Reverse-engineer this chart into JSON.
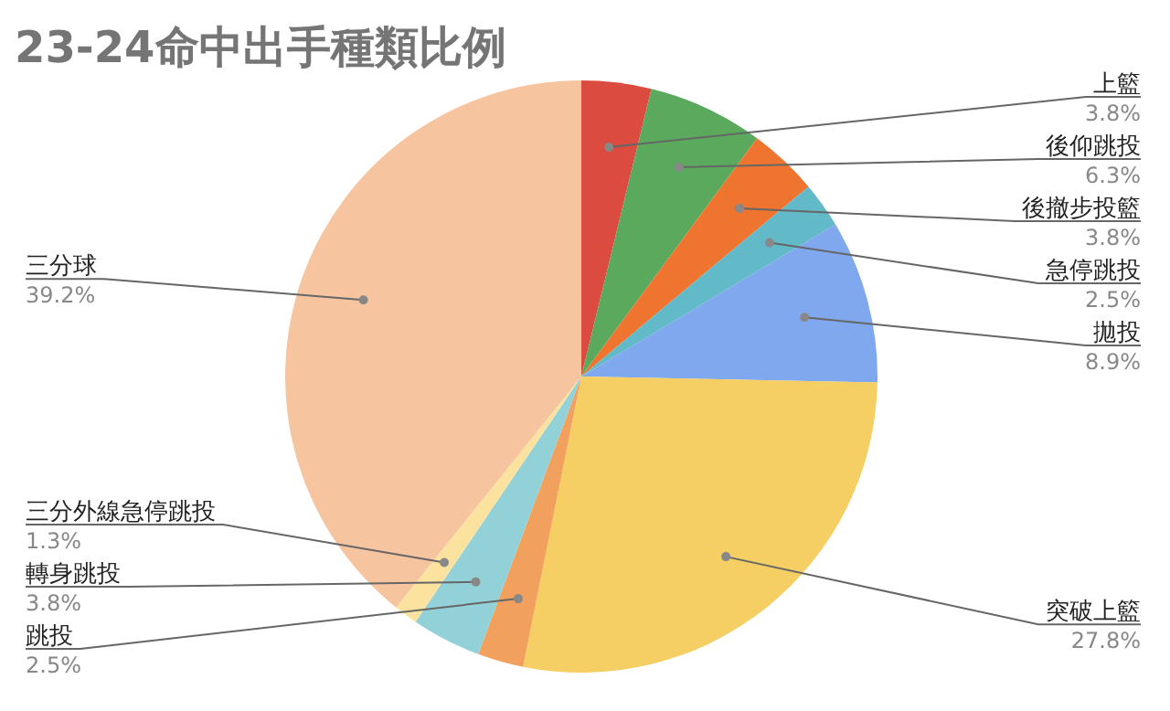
{
  "chart_data": {
    "type": "pie",
    "title": "23-24命中出手種類比例",
    "categories": [
      "上籃",
      "後仰跳投",
      "後撤步投籃",
      "急停跳投",
      "拋投",
      "突破上籃",
      "跳投",
      "轉身跳投",
      "三分外線急停跳投",
      "三分球"
    ],
    "values": [
      3.8,
      6.3,
      3.8,
      2.5,
      8.9,
      27.8,
      2.5,
      3.8,
      1.3,
      39.2
    ],
    "value_labels": [
      "3.8%",
      "6.3%",
      "3.8%",
      "2.5%",
      "8.9%",
      "27.8%",
      "2.5%",
      "3.8%",
      "1.3%",
      "39.2%"
    ],
    "colors": [
      "#db4b3f",
      "#5aa95d",
      "#ee7430",
      "#62b9c7",
      "#80a8ee",
      "#f5cf63",
      "#f1a05d",
      "#93d1d9",
      "#fbe39f",
      "#f6c5a0"
    ]
  }
}
